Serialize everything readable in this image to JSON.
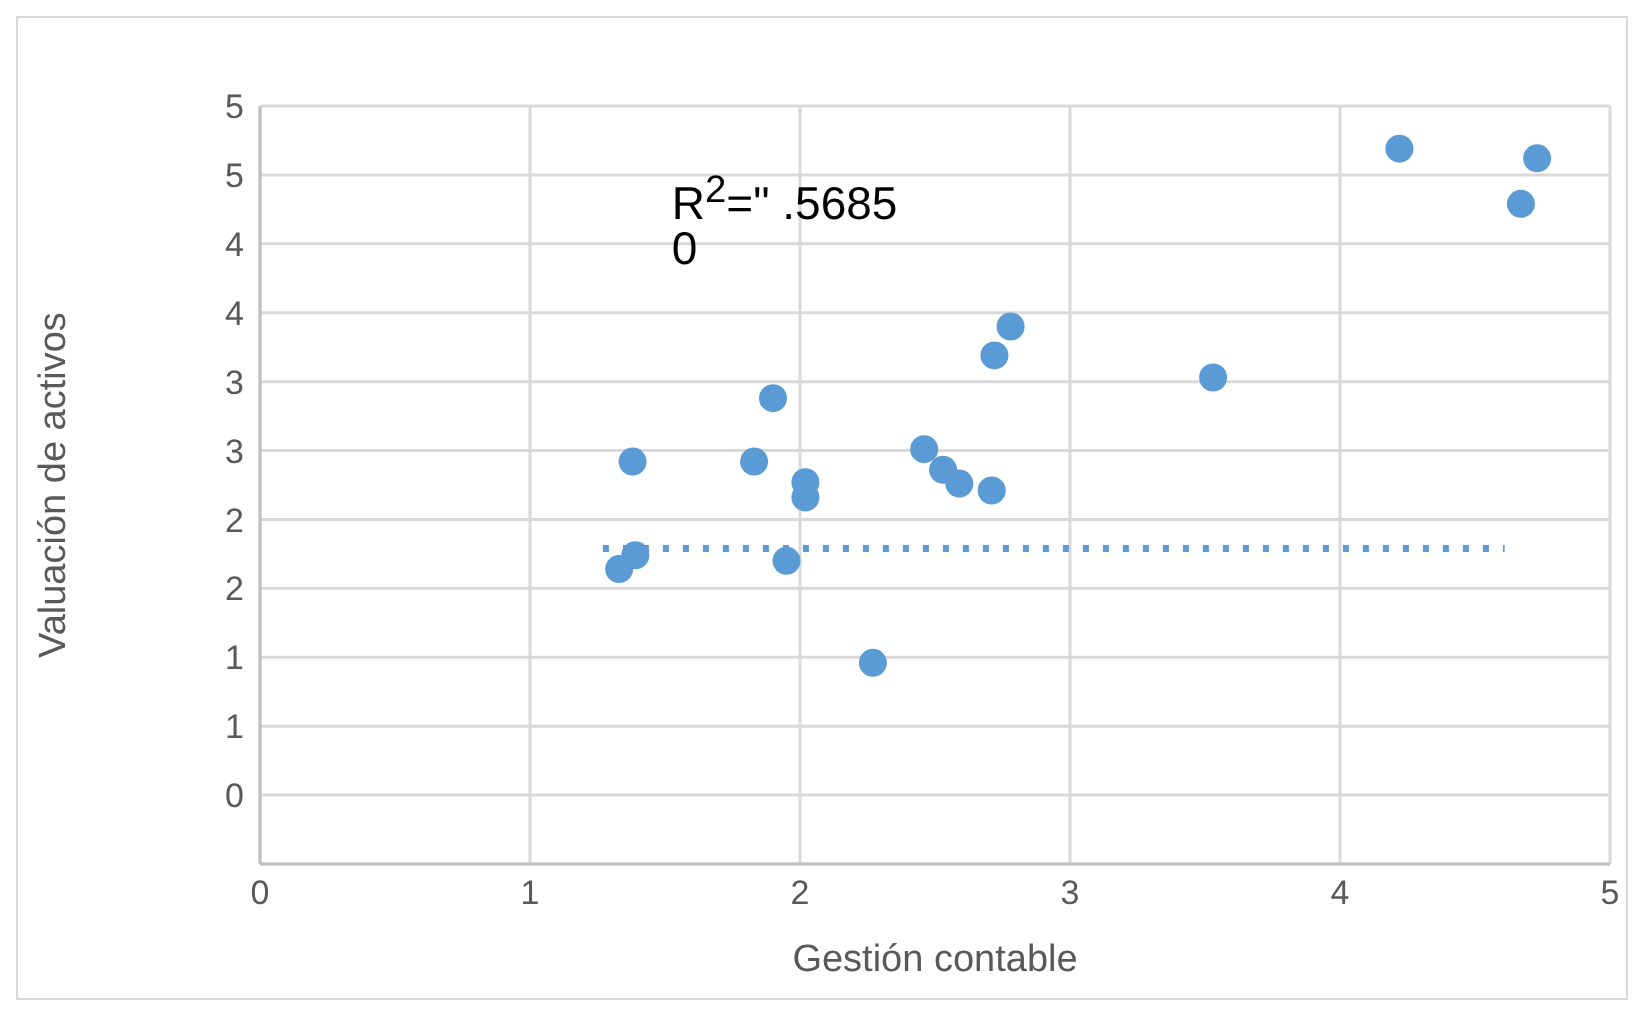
{
  "chart_data": {
    "type": "scatter",
    "xlabel": "Gestión contable",
    "ylabel": "Valuación de activos",
    "x": [
      1.33,
      1.39,
      1.38,
      1.83,
      1.9,
      1.95,
      2.02,
      2.02,
      2.27,
      2.46,
      2.53,
      2.59,
      2.71,
      2.72,
      2.78,
      3.53,
      4.22,
      4.73,
      4.67
    ],
    "series": [
      {
        "color": "#5b9bd5",
        "values": [
          2.14,
          2.24,
          2.92,
          2.92,
          3.38,
          2.2,
          2.77,
          2.66,
          1.46,
          3.01,
          2.86,
          2.76,
          2.71,
          3.69,
          3.9,
          3.53,
          5.19,
          5.12,
          4.79
        ]
      },
      {
        "type": "line",
        "color": "#5b9bd5",
        "line_style": "dotted",
        "marker": "none",
        "x": [
          1.27,
          4.61
        ],
        "values": [
          2.29,
          2.29
        ]
      }
    ],
    "marker": "circle",
    "grid": true,
    "xlim": [
      0,
      5
    ],
    "xticks": [
      0,
      1,
      2,
      3,
      4,
      5
    ],
    "ylim": [
      0,
      5.5
    ],
    "yticks": [
      {
        "value": 0,
        "label": null
      },
      {
        "value": 0.5,
        "label": "0"
      },
      {
        "value": 1,
        "label": "1"
      },
      {
        "value": 1.5,
        "label": "1"
      },
      {
        "value": 2,
        "label": "2"
      },
      {
        "value": 2.5,
        "label": "2"
      },
      {
        "value": 3,
        "label": "3"
      },
      {
        "value": 3.5,
        "label": "3"
      },
      {
        "value": 4,
        "label": "4"
      },
      {
        "value": 4.5,
        "label": "4"
      },
      {
        "value": 5,
        "label": "5"
      },
      {
        "value": 5.5,
        "label": "5"
      }
    ],
    "annotations": [
      "R$^{2}$=\" .5685\n0"
    ]
  }
}
